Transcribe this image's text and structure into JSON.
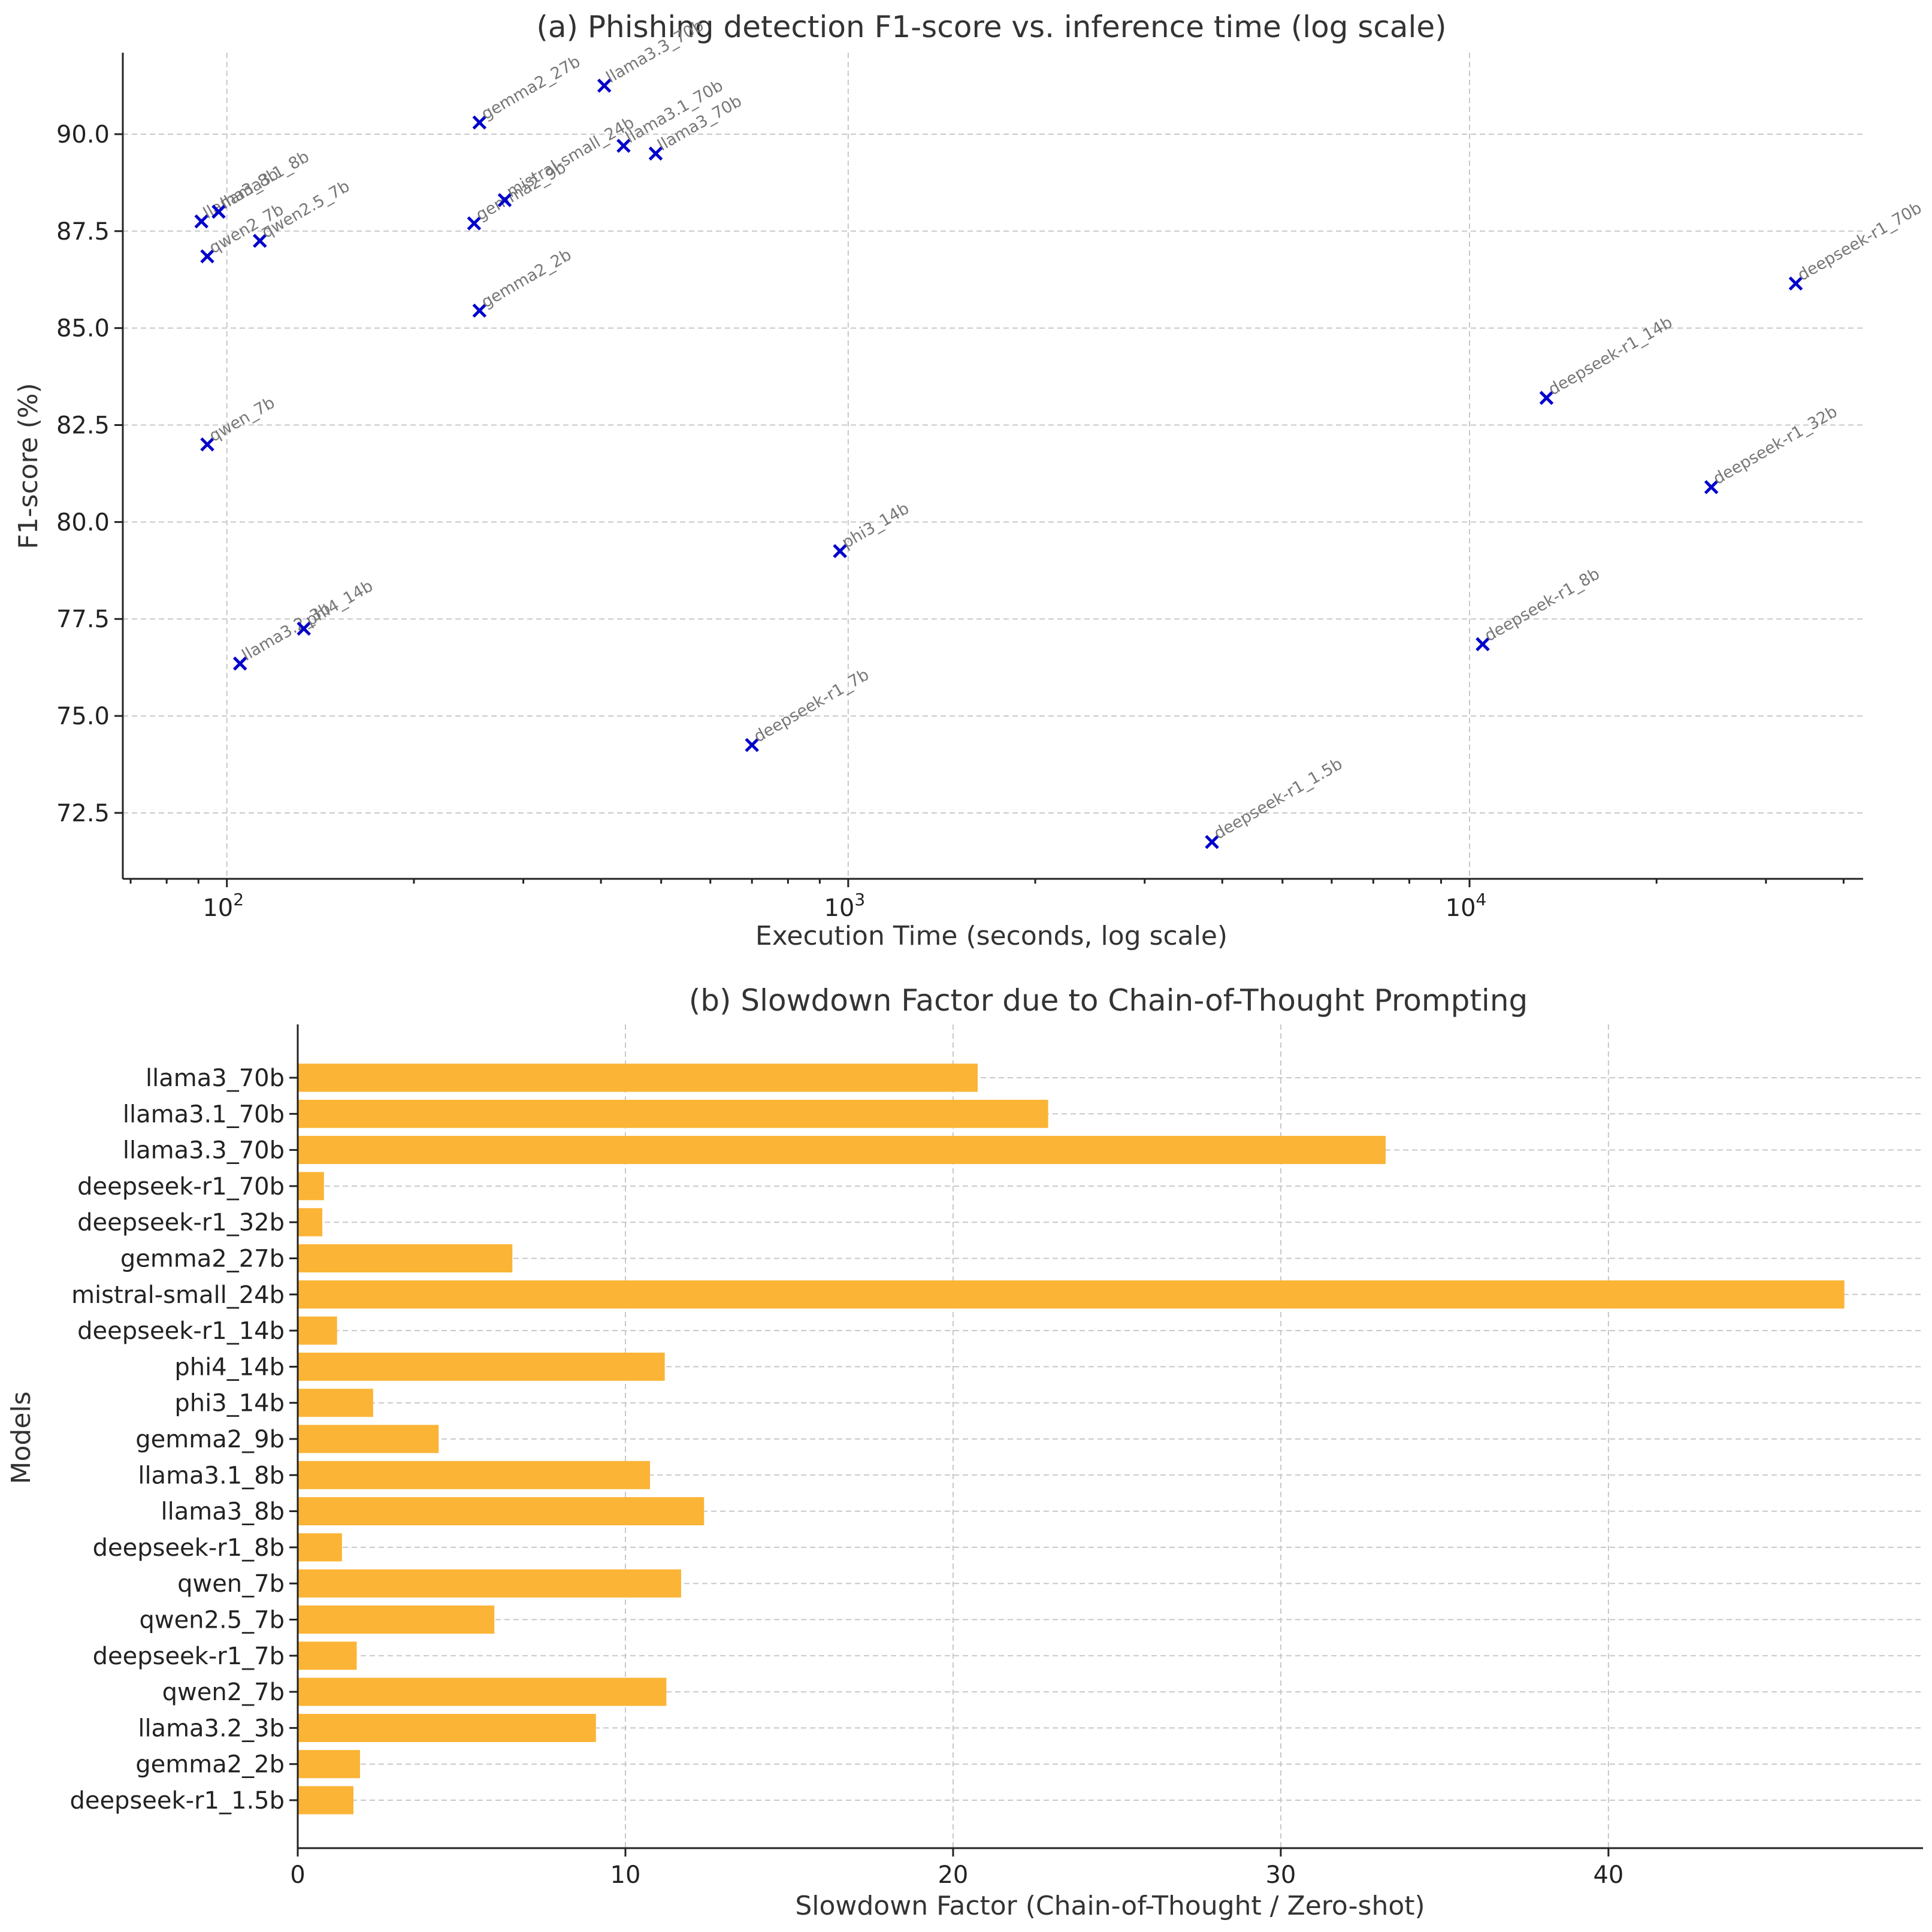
{
  "chart_data": [
    {
      "type": "scatter",
      "title": "(a) Phishing detection F1-score vs. inference time (log scale)",
      "xlabel": "Execution Time (seconds, log scale)",
      "ylabel": "F1-score (%)",
      "xscale": "log",
      "xlim": [
        68,
        43000
      ],
      "ylim": [
        70.8,
        92.1
      ],
      "x_ticks": [
        {
          "value": 100,
          "label": "10",
          "exp": "2"
        },
        {
          "value": 1000,
          "label": "10",
          "exp": "3"
        },
        {
          "value": 10000,
          "label": "10",
          "exp": "4"
        }
      ],
      "y_ticks": [
        72.5,
        75.0,
        77.5,
        80.0,
        82.5,
        85.0,
        87.5,
        90.0
      ],
      "y_tick_labels": [
        "72.5",
        "75.0",
        "77.5",
        "80.0",
        "82.5",
        "85.0",
        "87.5",
        "90.0"
      ],
      "marker_color": "#0000cc",
      "grid": true,
      "points": [
        {
          "label": "llama3_8b",
          "x": 91,
          "y": 87.75
        },
        {
          "label": "llama3.1_8b",
          "x": 97,
          "y": 88.0
        },
        {
          "label": "qwen2_7b",
          "x": 93,
          "y": 86.85
        },
        {
          "label": "qwen2.5_7b",
          "x": 113,
          "y": 87.25
        },
        {
          "label": "qwen_7b",
          "x": 93,
          "y": 82.0
        },
        {
          "label": "llama3.2_3b",
          "x": 105,
          "y": 76.35
        },
        {
          "label": "phi4_14b",
          "x": 133,
          "y": 77.25
        },
        {
          "label": "gemma2_27b",
          "x": 255,
          "y": 90.3
        },
        {
          "label": "gemma2_9b",
          "x": 250,
          "y": 87.7
        },
        {
          "label": "mistral-small_24b",
          "x": 280,
          "y": 88.3
        },
        {
          "label": "gemma2_2b",
          "x": 255,
          "y": 85.45
        },
        {
          "label": "llama3.3_70b",
          "x": 405,
          "y": 91.25
        },
        {
          "label": "llama3.1_70b",
          "x": 435,
          "y": 89.7
        },
        {
          "label": "llama3_70b",
          "x": 490,
          "y": 89.5
        },
        {
          "label": "deepseek-r1_7b",
          "x": 700,
          "y": 74.25
        },
        {
          "label": "phi3_14b",
          "x": 970,
          "y": 79.25
        },
        {
          "label": "deepseek-r1_1.5b",
          "x": 3850,
          "y": 71.75
        },
        {
          "label": "deepseek-r1_8b",
          "x": 10500,
          "y": 76.85
        },
        {
          "label": "deepseek-r1_14b",
          "x": 13300,
          "y": 83.2
        },
        {
          "label": "deepseek-r1_32b",
          "x": 24500,
          "y": 80.9
        },
        {
          "label": "deepseek-r1_70b",
          "x": 33500,
          "y": 86.15
        }
      ]
    },
    {
      "type": "bar",
      "orientation": "horizontal",
      "title": "(b) Slowdown Factor due to Chain-of-Thought Prompting",
      "xlabel": "Slowdown Factor (Chain-of-Thought / Zero-shot)",
      "ylabel": "Models",
      "xlim": [
        0,
        49.6
      ],
      "x_ticks": [
        0,
        10,
        20,
        30,
        40
      ],
      "x_tick_labels": [
        "0",
        "10",
        "20",
        "30",
        "40"
      ],
      "bar_color": "#fbb436",
      "grid": true,
      "categories": [
        "llama3_70b",
        "llama3.1_70b",
        "llama3.3_70b",
        "deepseek-r1_70b",
        "deepseek-r1_32b",
        "gemma2_27b",
        "mistral-small_24b",
        "deepseek-r1_14b",
        "phi4_14b",
        "phi3_14b",
        "gemma2_9b",
        "llama3.1_8b",
        "llama3_8b",
        "deepseek-r1_8b",
        "qwen_7b",
        "qwen2.5_7b",
        "deepseek-r1_7b",
        "qwen2_7b",
        "llama3.2_3b",
        "gemma2_2b",
        "deepseek-r1_1.5b"
      ],
      "values": [
        20.75,
        22.9,
        33.2,
        0.8,
        0.75,
        6.55,
        47.2,
        1.2,
        11.2,
        2.3,
        4.3,
        10.75,
        12.4,
        1.35,
        11.7,
        6.0,
        1.8,
        11.25,
        9.1,
        1.9,
        1.7
      ]
    }
  ]
}
